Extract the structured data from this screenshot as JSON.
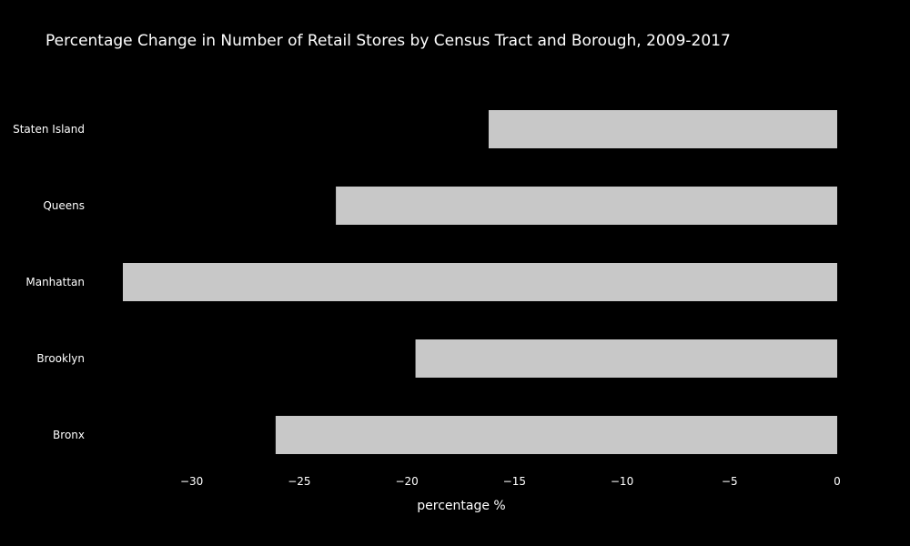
{
  "chart_data": {
    "type": "bar",
    "orientation": "horizontal",
    "title": "Percentage Change in Number of Retail Stores by Census Tract and Borough, 2009-2017",
    "xlabel": "percentage %",
    "ylabel": "",
    "categories": [
      "Bronx",
      "Brooklyn",
      "Manhattan",
      "Queens",
      "Staten Island"
    ],
    "values": [
      -26.1,
      -19.6,
      -33.2,
      -23.3,
      -16.2
    ],
    "xlim": [
      -33.2,
      0
    ],
    "x_ticks": [
      -30,
      -25,
      -20,
      -15,
      -10,
      -5,
      0
    ],
    "x_tick_labels": [
      "−30",
      "−25",
      "−20",
      "−15",
      "−10",
      "−5",
      "0"
    ],
    "grid": false,
    "legend": "none",
    "bar_color": "#c8c8c8",
    "background_color": "#000000",
    "text_color": "#ffffff"
  }
}
